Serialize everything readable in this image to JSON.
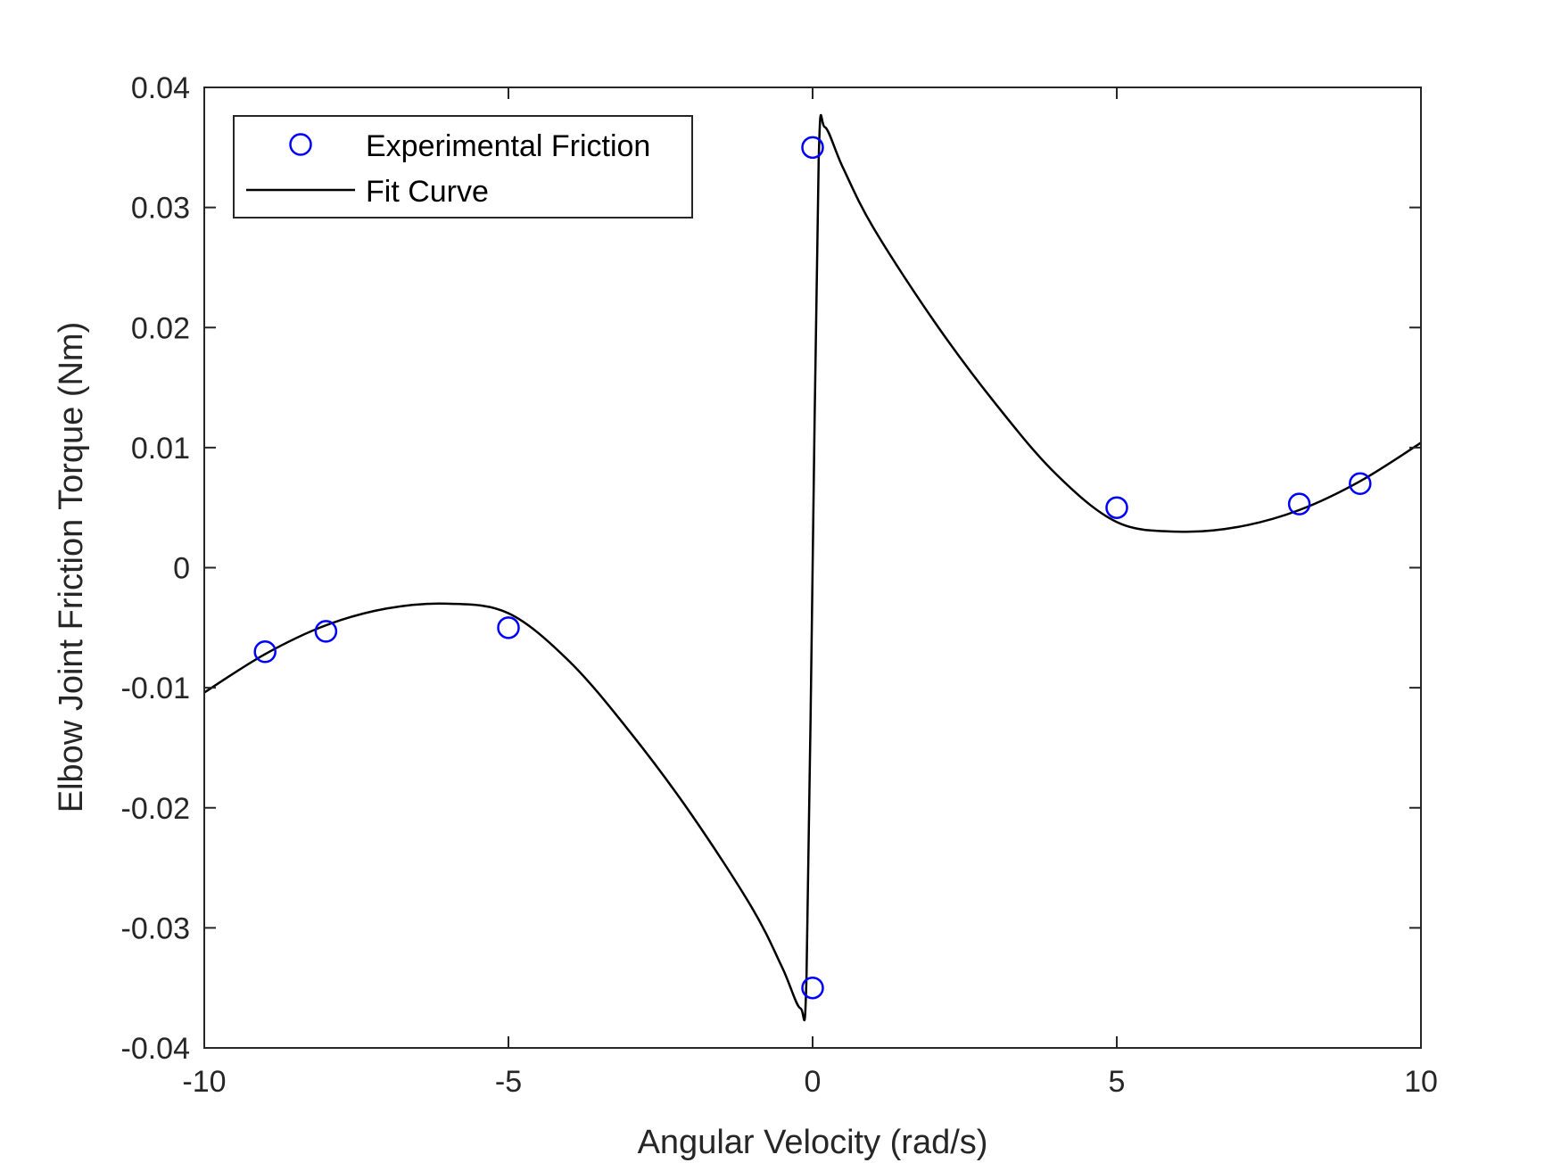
{
  "chart_data": {
    "type": "scatter",
    "title": "",
    "xlabel": "Angular Velocity (rad/s)",
    "ylabel": "Elbow Joint Friction Torque (Nm)",
    "xlim": [
      -10,
      10
    ],
    "ylim": [
      -0.04,
      0.04
    ],
    "x_ticks": [
      -10,
      -5,
      0,
      5,
      10
    ],
    "x_tick_labels": [
      "-10",
      "-5",
      "0",
      "5",
      "10"
    ],
    "y_ticks": [
      0.04,
      0.03,
      0.02,
      0.01,
      0,
      -0.01,
      -0.02,
      -0.03,
      -0.04
    ],
    "y_tick_labels": [
      "0.04",
      "0.03",
      "0.02",
      "0.01",
      "0",
      "-0.01",
      "-0.02",
      "-0.03",
      "-0.04"
    ],
    "grid": false,
    "legend_position": "top-left",
    "series": [
      {
        "name": "Experimental Friction",
        "kind": "markers",
        "marker": "circle",
        "color": "#0000ff",
        "x": [
          -9,
          -8,
          -5,
          0,
          0,
          5,
          8,
          9
        ],
        "y": [
          -0.007,
          -0.0053,
          -0.005,
          -0.035,
          0.035,
          0.005,
          0.0053,
          0.007
        ]
      },
      {
        "name": "Fit Curve",
        "kind": "line",
        "color": "#000000",
        "x": [
          -10,
          -9,
          -8,
          -7,
          -6,
          -5,
          -4,
          -3,
          -2,
          -1,
          -0.5,
          -0.2,
          -0.1,
          0,
          0.1,
          0.2,
          0.5,
          1,
          2,
          3,
          4,
          5,
          6,
          7,
          8,
          9,
          10
        ],
        "y": [
          -0.0104,
          -0.0072,
          -0.0048,
          -0.0034,
          -0.003,
          -0.0038,
          -0.0078,
          -0.0137,
          -0.0205,
          -0.0283,
          -0.0333,
          -0.0367,
          -0.034,
          0,
          0.034,
          0.0367,
          0.0333,
          0.0283,
          0.0205,
          0.0137,
          0.0078,
          0.0038,
          0.003,
          0.0034,
          0.0048,
          0.0072,
          0.0104
        ]
      }
    ]
  }
}
